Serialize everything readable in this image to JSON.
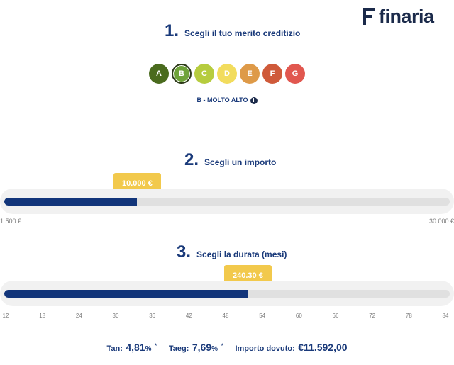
{
  "logo": {
    "text": "finaria"
  },
  "steps": [
    {
      "number": "1.",
      "title": "Scegli il tuo merito creditizio"
    },
    {
      "number": "2.",
      "title": "Scegli un importo"
    },
    {
      "number": "3.",
      "title": "Scegli la durata (mesi)"
    }
  ],
  "grades": [
    {
      "label": "A",
      "color": "#4a6b1e",
      "selected": false
    },
    {
      "label": "B",
      "color": "#6fa33a",
      "selected": true
    },
    {
      "label": "C",
      "color": "#b6cc3e",
      "selected": false
    },
    {
      "label": "D",
      "color": "#f2dc5d",
      "selected": false
    },
    {
      "label": "E",
      "color": "#de9a48",
      "selected": false
    },
    {
      "label": "F",
      "color": "#cf5a3a",
      "selected": false
    },
    {
      "label": "G",
      "color": "#e1574f",
      "selected": false
    }
  ],
  "rating_label": "B - MOLTO ALTO",
  "amount": {
    "value_label": "10.000 €",
    "min_label": "1.500 €",
    "max_label": "30.000 €",
    "fraction": 0.298
  },
  "duration": {
    "value_label": "240.30 €",
    "fraction": 0.5475,
    "ticks": [
      "12",
      "18",
      "24",
      "30",
      "36",
      "42",
      "48",
      "54",
      "60",
      "66",
      "72",
      "78",
      "84"
    ]
  },
  "summary": {
    "tan_label": "Tan:",
    "tan_value": "4,81",
    "tan_unit": "%",
    "taeg_label": "Taeg:",
    "taeg_value": "7,69",
    "taeg_unit": "%",
    "asterisk": "*",
    "due_label": "Importo dovuto:",
    "due_value": "€11.592,00"
  },
  "colors": {
    "brand": "#1b2a4a",
    "accent": "#12357a",
    "bubble": "#f2c94c"
  }
}
